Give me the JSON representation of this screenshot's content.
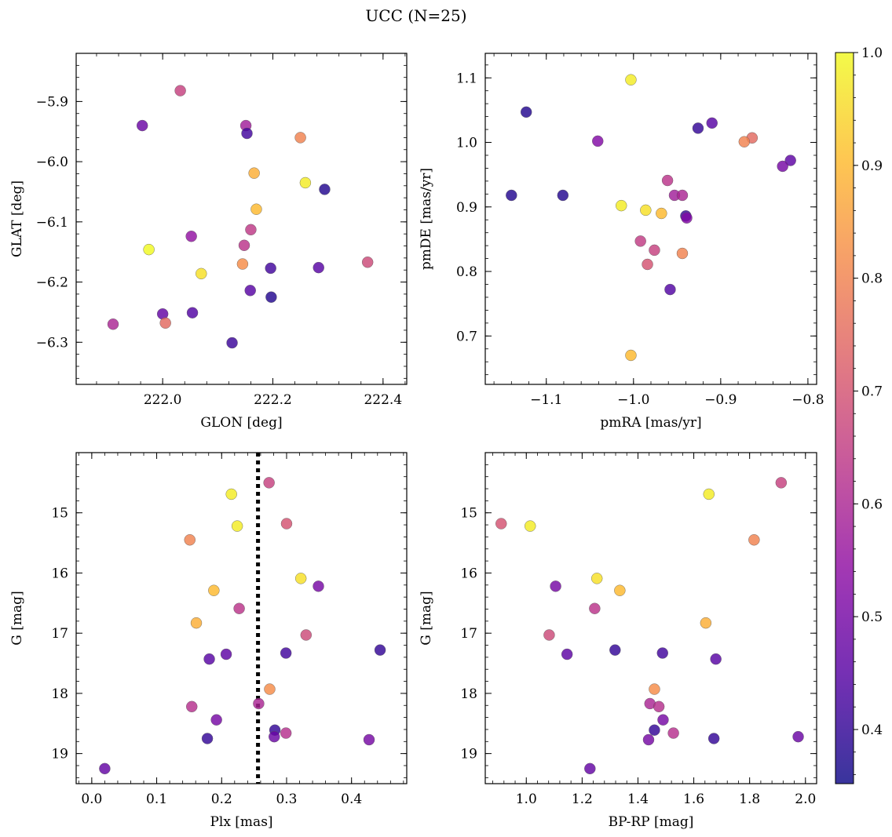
{
  "title": "UCC (N=25)",
  "colorbar": {
    "vmin": 0.352,
    "vmax": 1.0,
    "ticks": [
      0.4,
      0.5,
      0.6,
      0.7,
      0.8,
      0.9,
      1.0
    ],
    "tick_labels": [
      "0.4",
      "0.5",
      "0.6",
      "0.7",
      "0.8",
      "0.9",
      "1.0"
    ],
    "colormap": "plasma (alpha 0.8)"
  },
  "chart_data": [
    {
      "type": "scatter",
      "xlabel": "GLON [deg]",
      "ylabel": "GLAT [deg]",
      "xlim": [
        221.843,
        222.443
      ],
      "ylim": [
        -6.37,
        -5.82
      ],
      "y_inverted": false,
      "xticks": [
        222.0,
        222.2,
        222.4
      ],
      "xtick_labels": [
        "222.0",
        "222.2",
        "222.4"
      ],
      "yticks": [
        -5.9,
        -6.0,
        -6.1,
        -6.2,
        -6.3
      ],
      "ytick_labels": [
        "−5.9",
        "−6.0",
        "−6.1",
        "−6.2",
        "−6.3"
      ],
      "points": [
        {
          "x": 222.032,
          "y": -5.882,
          "c": 0.66
        },
        {
          "x": 221.963,
          "y": -5.94,
          "c": 0.48
        },
        {
          "x": 222.151,
          "y": -5.94,
          "c": 0.58
        },
        {
          "x": 222.153,
          "y": -5.953,
          "c": 0.42
        },
        {
          "x": 222.25,
          "y": -5.96,
          "c": 0.8
        },
        {
          "x": 222.166,
          "y": -6.019,
          "c": 0.88
        },
        {
          "x": 222.259,
          "y": -6.035,
          "c": 0.98
        },
        {
          "x": 222.294,
          "y": -6.046,
          "c": 0.38
        },
        {
          "x": 222.17,
          "y": -6.079,
          "c": 0.9
        },
        {
          "x": 222.16,
          "y": -6.113,
          "c": 0.64
        },
        {
          "x": 222.052,
          "y": -6.124,
          "c": 0.55
        },
        {
          "x": 222.148,
          "y": -6.139,
          "c": 0.63
        },
        {
          "x": 221.975,
          "y": -6.146,
          "c": 1.0
        },
        {
          "x": 222.372,
          "y": -6.167,
          "c": 0.68
        },
        {
          "x": 222.145,
          "y": -6.17,
          "c": 0.82
        },
        {
          "x": 222.196,
          "y": -6.177,
          "c": 0.42
        },
        {
          "x": 222.283,
          "y": -6.176,
          "c": 0.45
        },
        {
          "x": 222.07,
          "y": -6.186,
          "c": 0.96
        },
        {
          "x": 222.159,
          "y": -6.214,
          "c": 0.45
        },
        {
          "x": 222.197,
          "y": -6.225,
          "c": 0.38
        },
        {
          "x": 222.0,
          "y": -6.253,
          "c": 0.47
        },
        {
          "x": 222.054,
          "y": -6.251,
          "c": 0.44
        },
        {
          "x": 222.005,
          "y": -6.268,
          "c": 0.75
        },
        {
          "x": 221.91,
          "y": -6.27,
          "c": 0.6
        },
        {
          "x": 222.126,
          "y": -6.301,
          "c": 0.41
        }
      ]
    },
    {
      "type": "scatter",
      "xlabel": "pmRA [mas/yr]",
      "ylabel": "pmDE [mas/yr]",
      "xlim": [
        -1.17,
        -0.79
      ],
      "ylim": [
        0.625,
        1.138
      ],
      "y_inverted": false,
      "xticks": [
        -1.1,
        -1.0,
        -0.9,
        -0.8
      ],
      "xtick_labels": [
        "−1.1",
        "−1.0",
        "−0.9",
        "−0.8"
      ],
      "yticks": [
        0.7,
        0.8,
        0.9,
        1.0,
        1.1
      ],
      "ytick_labels": [
        "0.7",
        "0.8",
        "0.9",
        "1.0",
        "1.1"
      ],
      "points": [
        {
          "x": -1.003,
          "y": 1.097,
          "c": 0.98
        },
        {
          "x": -1.123,
          "y": 1.047,
          "c": 0.38
        },
        {
          "x": -0.91,
          "y": 1.03,
          "c": 0.45
        },
        {
          "x": -0.926,
          "y": 1.022,
          "c": 0.4
        },
        {
          "x": -0.864,
          "y": 1.007,
          "c": 0.75
        },
        {
          "x": -1.041,
          "y": 1.002,
          "c": 0.52
        },
        {
          "x": -0.873,
          "y": 1.001,
          "c": 0.8
        },
        {
          "x": -0.82,
          "y": 0.972,
          "c": 0.46
        },
        {
          "x": -0.829,
          "y": 0.963,
          "c": 0.5
        },
        {
          "x": -0.961,
          "y": 0.941,
          "c": 0.63
        },
        {
          "x": -1.14,
          "y": 0.918,
          "c": 0.38
        },
        {
          "x": -1.081,
          "y": 0.918,
          "c": 0.38
        },
        {
          "x": -0.953,
          "y": 0.918,
          "c": 0.58
        },
        {
          "x": -0.944,
          "y": 0.918,
          "c": 0.6
        },
        {
          "x": -1.014,
          "y": 0.902,
          "c": 0.98
        },
        {
          "x": -0.986,
          "y": 0.895,
          "c": 0.96
        },
        {
          "x": -0.968,
          "y": 0.89,
          "c": 0.9
        },
        {
          "x": -0.94,
          "y": 0.886,
          "c": 0.4
        },
        {
          "x": -0.939,
          "y": 0.883,
          "c": 0.52
        },
        {
          "x": -0.992,
          "y": 0.847,
          "c": 0.65
        },
        {
          "x": -0.976,
          "y": 0.833,
          "c": 0.66
        },
        {
          "x": -0.944,
          "y": 0.828,
          "c": 0.8
        },
        {
          "x": -0.984,
          "y": 0.811,
          "c": 0.7
        },
        {
          "x": -0.958,
          "y": 0.772,
          "c": 0.44
        },
        {
          "x": -1.003,
          "y": 0.67,
          "c": 0.9
        }
      ]
    },
    {
      "type": "scatter",
      "xlabel": "Plx [mas]",
      "ylabel": "G [mag]",
      "xlim": [
        -0.024,
        0.485
      ],
      "ylim": [
        19.5,
        14.0
      ],
      "y_inverted": true,
      "xticks": [
        0.0,
        0.1,
        0.2,
        0.3,
        0.4
      ],
      "xtick_labels": [
        "0.0",
        "0.1",
        "0.2",
        "0.3",
        "0.4"
      ],
      "yticks": [
        15,
        16,
        17,
        18,
        19
      ],
      "ytick_labels": [
        "15",
        "16",
        "17",
        "18",
        "19"
      ],
      "vline": {
        "x": 0.256,
        "style": "dotted"
      },
      "points": [
        {
          "x": 0.215,
          "y": 14.69,
          "c": 0.98
        },
        {
          "x": 0.273,
          "y": 14.5,
          "c": 0.66
        },
        {
          "x": 0.224,
          "y": 15.22,
          "c": 0.98
        },
        {
          "x": 0.3,
          "y": 15.18,
          "c": 0.7
        },
        {
          "x": 0.151,
          "y": 15.45,
          "c": 0.8
        },
        {
          "x": 0.322,
          "y": 16.09,
          "c": 0.96
        },
        {
          "x": 0.349,
          "y": 16.22,
          "c": 0.5
        },
        {
          "x": 0.188,
          "y": 16.29,
          "c": 0.9
        },
        {
          "x": 0.227,
          "y": 16.59,
          "c": 0.63
        },
        {
          "x": 0.161,
          "y": 16.83,
          "c": 0.88
        },
        {
          "x": 0.33,
          "y": 17.03,
          "c": 0.68
        },
        {
          "x": 0.444,
          "y": 17.28,
          "c": 0.4
        },
        {
          "x": 0.207,
          "y": 17.35,
          "c": 0.46
        },
        {
          "x": 0.299,
          "y": 17.33,
          "c": 0.42
        },
        {
          "x": 0.181,
          "y": 17.43,
          "c": 0.45
        },
        {
          "x": 0.274,
          "y": 17.93,
          "c": 0.82
        },
        {
          "x": 0.257,
          "y": 18.17,
          "c": 0.6
        },
        {
          "x": 0.154,
          "y": 18.22,
          "c": 0.62
        },
        {
          "x": 0.192,
          "y": 18.44,
          "c": 0.5
        },
        {
          "x": 0.282,
          "y": 18.61,
          "c": 0.4
        },
        {
          "x": 0.299,
          "y": 18.66,
          "c": 0.62
        },
        {
          "x": 0.281,
          "y": 18.72,
          "c": 0.48
        },
        {
          "x": 0.178,
          "y": 18.75,
          "c": 0.4
        },
        {
          "x": 0.427,
          "y": 18.77,
          "c": 0.5
        },
        {
          "x": 0.02,
          "y": 19.25,
          "c": 0.47
        }
      ]
    },
    {
      "type": "scatter",
      "xlabel": "BP-RP [mag]",
      "ylabel": "G [mag]",
      "xlim": [
        0.853,
        2.04
      ],
      "ylim": [
        19.5,
        14.0
      ],
      "y_inverted": true,
      "xticks": [
        1.0,
        1.2,
        1.4,
        1.6,
        1.8,
        2.0
      ],
      "xtick_labels": [
        "1.0",
        "1.2",
        "1.4",
        "1.6",
        "1.8",
        "2.0"
      ],
      "yticks": [
        15,
        16,
        17,
        18,
        19
      ],
      "ytick_labels": [
        "15",
        "16",
        "17",
        "18",
        "19"
      ],
      "points": [
        {
          "x": 1.913,
          "y": 14.5,
          "c": 0.66
        },
        {
          "x": 1.654,
          "y": 14.69,
          "c": 0.98
        },
        {
          "x": 0.91,
          "y": 15.18,
          "c": 0.7
        },
        {
          "x": 1.014,
          "y": 15.22,
          "c": 0.98
        },
        {
          "x": 1.816,
          "y": 15.45,
          "c": 0.8
        },
        {
          "x": 1.105,
          "y": 16.22,
          "c": 0.5
        },
        {
          "x": 1.253,
          "y": 16.09,
          "c": 0.96
        },
        {
          "x": 1.335,
          "y": 16.29,
          "c": 0.9
        },
        {
          "x": 1.245,
          "y": 16.59,
          "c": 0.63
        },
        {
          "x": 1.643,
          "y": 16.83,
          "c": 0.88
        },
        {
          "x": 1.082,
          "y": 17.03,
          "c": 0.68
        },
        {
          "x": 1.318,
          "y": 17.28,
          "c": 0.4
        },
        {
          "x": 1.146,
          "y": 17.35,
          "c": 0.46
        },
        {
          "x": 1.488,
          "y": 17.33,
          "c": 0.42
        },
        {
          "x": 1.679,
          "y": 17.43,
          "c": 0.45
        },
        {
          "x": 1.459,
          "y": 17.93,
          "c": 0.82
        },
        {
          "x": 1.443,
          "y": 18.17,
          "c": 0.6
        },
        {
          "x": 1.475,
          "y": 18.22,
          "c": 0.62
        },
        {
          "x": 1.49,
          "y": 18.44,
          "c": 0.5
        },
        {
          "x": 1.459,
          "y": 18.61,
          "c": 0.4
        },
        {
          "x": 1.527,
          "y": 18.66,
          "c": 0.62
        },
        {
          "x": 1.974,
          "y": 18.72,
          "c": 0.48
        },
        {
          "x": 1.672,
          "y": 18.75,
          "c": 0.4
        },
        {
          "x": 1.438,
          "y": 18.77,
          "c": 0.5
        },
        {
          "x": 1.228,
          "y": 19.25,
          "c": 0.47
        }
      ]
    }
  ]
}
